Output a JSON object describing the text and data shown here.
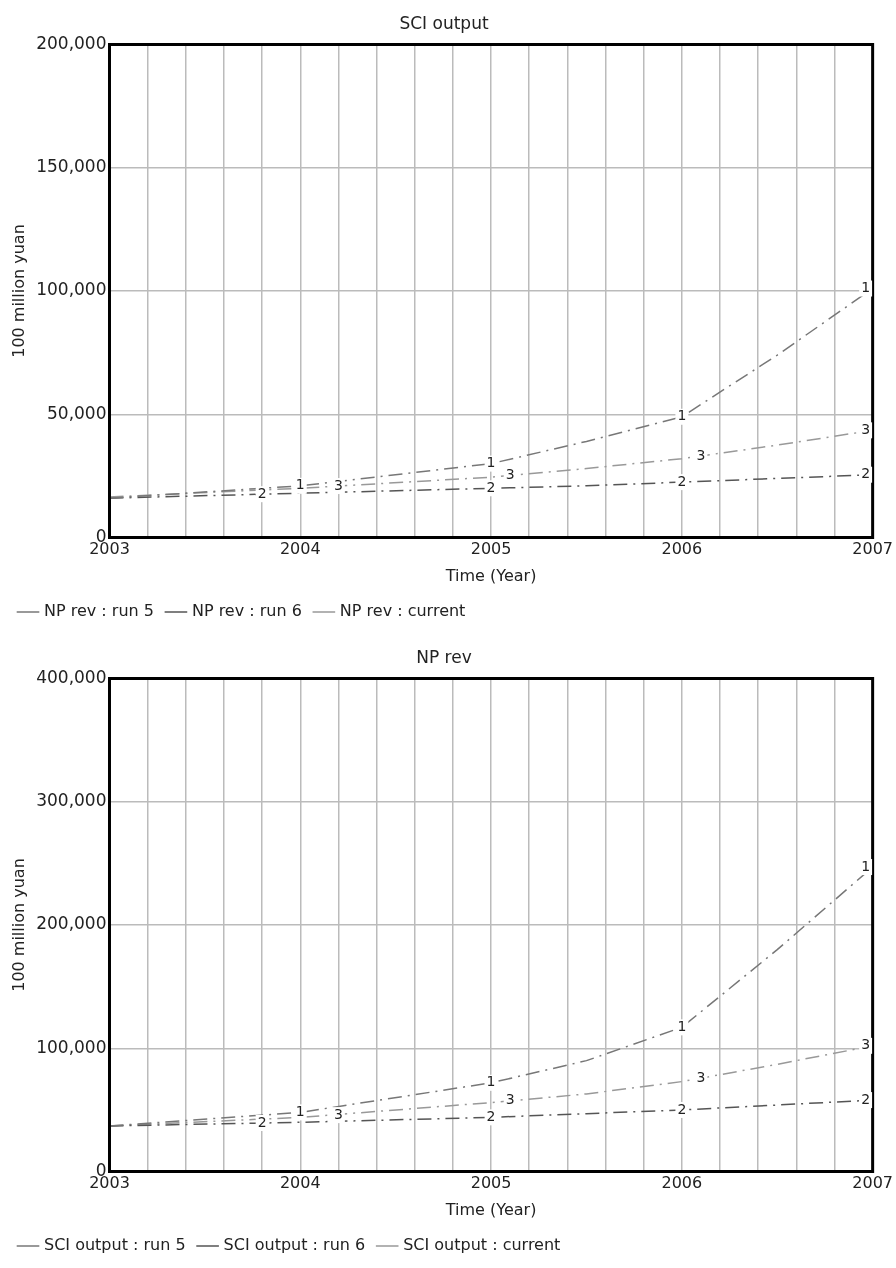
{
  "chart_data": [
    {
      "type": "line",
      "title": "SCI output",
      "xlabel": "Time (Year)",
      "ylabel": "100 million yuan",
      "grid": true,
      "legend": "bottom",
      "line_style": "dashed",
      "marker": "none",
      "x": [
        2003,
        2004,
        2005,
        2005.5,
        2006,
        2006.5,
        2007
      ],
      "xlim": [
        2003,
        2007
      ],
      "ylim": [
        0,
        200000
      ],
      "yticks": [
        0,
        {
          "value": 50000,
          "label": "50,000"
        },
        {
          "value": 100000,
          "label": "100,000"
        },
        {
          "value": 150000,
          "label": "150,000"
        },
        {
          "value": 200000,
          "label": "200,000"
        }
      ],
      "xticks": [
        2003,
        {
          "value": 2003.2,
          "label": null
        },
        {
          "value": 2003.4,
          "label": null
        },
        {
          "value": 2003.6,
          "label": null
        },
        {
          "value": 2003.8,
          "label": null
        },
        2004,
        {
          "value": 2004.2,
          "label": null
        },
        {
          "value": 2004.4,
          "label": null
        },
        {
          "value": 2004.6,
          "label": null
        },
        {
          "value": 2004.8,
          "label": null
        },
        2005,
        {
          "value": 2005.2,
          "label": null
        },
        {
          "value": 2005.4,
          "label": null
        },
        {
          "value": 2005.6,
          "label": null
        },
        {
          "value": 2005.8,
          "label": null
        },
        2006,
        {
          "value": 2006.2,
          "label": null
        },
        {
          "value": 2006.4,
          "label": null
        },
        {
          "value": 2006.6,
          "label": null
        },
        {
          "value": 2006.8,
          "label": null
        },
        2007
      ],
      "series": [
        {
          "name": "NP rev : run 5",
          "color": "#777777",
          "values": [
            16000,
            21000,
            30000,
            39000,
            49000,
            74000,
            101000
          ]
        },
        {
          "name": "NP rev : run 6",
          "color": "#555555",
          "values": [
            16000,
            18000,
            20000,
            21000,
            22500,
            24000,
            25500
          ]
        },
        {
          "name": "NP rev : current",
          "color": "#999999",
          "values": [
            16500,
            20000,
            24500,
            28000,
            32000,
            37500,
            43500
          ]
        }
      ],
      "annotations": [
        {
          "text": "1",
          "x": 2004,
          "y": 21000
        },
        {
          "text": "1",
          "x": 2005,
          "y": 30000
        },
        {
          "text": "1",
          "x": 2006,
          "y": 49000
        },
        {
          "text": "1",
          "x": 2007,
          "y": 101000
        },
        {
          "text": "2",
          "x": 2003.8,
          "y": 17600
        },
        {
          "text": "2",
          "x": 2005,
          "y": 20000
        },
        {
          "text": "2",
          "x": 2006,
          "y": 22500
        },
        {
          "text": "2",
          "x": 2007,
          "y": 25500
        },
        {
          "text": "3",
          "x": 2004.2,
          "y": 20900
        },
        {
          "text": "3",
          "x": 2005.1,
          "y": 25200
        },
        {
          "text": "3",
          "x": 2006.1,
          "y": 33100
        },
        {
          "text": "3",
          "x": 2007,
          "y": 43500
        }
      ]
    },
    {
      "type": "line",
      "title": "NP rev",
      "xlabel": "Time (Year)",
      "ylabel": "100 million yuan",
      "grid": true,
      "legend": "bottom",
      "line_style": "dashed",
      "marker": "none",
      "x": [
        2003,
        2004,
        2005,
        2005.5,
        2006,
        2006.5,
        2007
      ],
      "xlim": [
        2003,
        2007
      ],
      "ylim": [
        0,
        400000
      ],
      "yticks": [
        0,
        {
          "value": 100000,
          "label": "100,000"
        },
        {
          "value": 200000,
          "label": "200,000"
        },
        {
          "value": 300000,
          "label": "300,000"
        },
        {
          "value": 400000,
          "label": "400,000"
        }
      ],
      "xticks": [
        2003,
        {
          "value": 2003.2,
          "label": null
        },
        {
          "value": 2003.4,
          "label": null
        },
        {
          "value": 2003.6,
          "label": null
        },
        {
          "value": 2003.8,
          "label": null
        },
        2004,
        {
          "value": 2004.2,
          "label": null
        },
        {
          "value": 2004.4,
          "label": null
        },
        {
          "value": 2004.6,
          "label": null
        },
        {
          "value": 2004.8,
          "label": null
        },
        2005,
        {
          "value": 2005.2,
          "label": null
        },
        {
          "value": 2005.4,
          "label": null
        },
        {
          "value": 2005.6,
          "label": null
        },
        {
          "value": 2005.8,
          "label": null
        },
        2006,
        {
          "value": 2006.2,
          "label": null
        },
        {
          "value": 2006.4,
          "label": null
        },
        {
          "value": 2006.6,
          "label": null
        },
        {
          "value": 2006.8,
          "label": null
        },
        2007
      ],
      "series": [
        {
          "name": "SCI output : run 5",
          "color": "#777777",
          "values": [
            37000,
            48000,
            72000,
            90000,
            117000,
            180000,
            247000
          ]
        },
        {
          "name": "SCI output : run 6",
          "color": "#555555",
          "values": [
            37000,
            40000,
            44000,
            47000,
            50000,
            54000,
            58000
          ]
        },
        {
          "name": "SCI output : current",
          "color": "#999999",
          "values": [
            37000,
            44000,
            56000,
            63000,
            73000,
            87000,
            102000
          ]
        }
      ],
      "annotations": [
        {
          "text": "1",
          "x": 2004,
          "y": 48000
        },
        {
          "text": "1",
          "x": 2005,
          "y": 72000
        },
        {
          "text": "1",
          "x": 2006,
          "y": 117000
        },
        {
          "text": "1",
          "x": 2007,
          "y": 247000
        },
        {
          "text": "2",
          "x": 2003.8,
          "y": 39400
        },
        {
          "text": "2",
          "x": 2005,
          "y": 44000
        },
        {
          "text": "2",
          "x": 2006,
          "y": 50000
        },
        {
          "text": "2",
          "x": 2007,
          "y": 58000
        },
        {
          "text": "3",
          "x": 2004.2,
          "y": 45800
        },
        {
          "text": "3",
          "x": 2005.1,
          "y": 57400
        },
        {
          "text": "3",
          "x": 2006.1,
          "y": 75800
        },
        {
          "text": "3",
          "x": 2007,
          "y": 102000
        }
      ]
    }
  ]
}
